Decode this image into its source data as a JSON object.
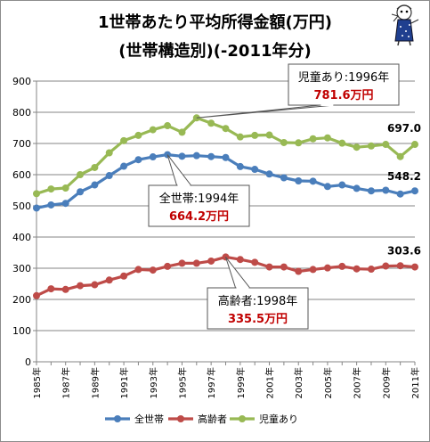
{
  "header": {
    "title_line1": "1世帯あたり平均所得金額(万円)",
    "title_line2": "(世帯構造別)(-2011年分)"
  },
  "chart_data": {
    "type": "line",
    "x": [
      1985,
      1986,
      1987,
      1988,
      1989,
      1990,
      1991,
      1992,
      1993,
      1994,
      1995,
      1996,
      1997,
      1998,
      1999,
      2000,
      2001,
      2002,
      2003,
      2004,
      2005,
      2006,
      2007,
      2008,
      2009,
      2010,
      2011
    ],
    "x_tick_labels": [
      "1985年",
      "1987年",
      "1989年",
      "1991年",
      "1993年",
      "1995年",
      "1997年",
      "1999年",
      "2001年",
      "2003年",
      "2005年",
      "2007年",
      "2009年",
      "2011年"
    ],
    "ylim": [
      0,
      900
    ],
    "y_ticks": [
      "0",
      "100",
      "200",
      "300",
      "400",
      "500",
      "600",
      "700",
      "800",
      "900"
    ],
    "grid": true,
    "legend": "bottom",
    "series": [
      {
        "name": "全世帯",
        "color": "#4a7ebb",
        "values": [
          493,
          503,
          508,
          545,
          567,
          597,
          627,
          648,
          657,
          664,
          659,
          661,
          658,
          655,
          626,
          617,
          602,
          590,
          580,
          579,
          562,
          567,
          556,
          548,
          550,
          538,
          548
        ]
      },
      {
        "name": "高齢者",
        "color": "#be4b48",
        "values": [
          212,
          234,
          232,
          244,
          247,
          262,
          275,
          296,
          294,
          306,
          316,
          316,
          323,
          336,
          328,
          319,
          304,
          304,
          290,
          296,
          301,
          306,
          298,
          297,
          307,
          308,
          304
        ]
      },
      {
        "name": "児童あり",
        "color": "#98b954",
        "values": [
          539,
          554,
          557,
          600,
          623,
          670,
          709,
          726,
          744,
          757,
          736,
          782,
          765,
          748,
          721,
          726,
          727,
          703,
          702,
          715,
          718,
          701,
          688,
          692,
          697,
          658,
          697
        ]
      }
    ],
    "annotations": [
      {
        "label": "児童あり:1996年",
        "value": "781.6万円"
      },
      {
        "label": "全世帯:1994年",
        "value": "664.2万円"
      },
      {
        "label": "高齢者:1998年",
        "value": "335.5万円"
      }
    ],
    "end_labels": [
      "548.2",
      "303.6",
      "697.0"
    ]
  }
}
